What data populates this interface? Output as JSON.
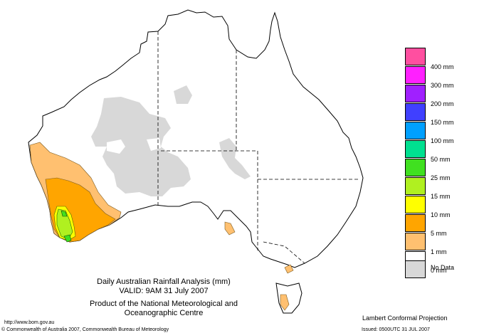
{
  "map_title": "Daily Australian Rainfall Analysis (mm)",
  "valid": "VALID: 9AM 31 July 2007",
  "product": "Product of the National Meteorological and Oceanographic Centre",
  "projection": "Lambert Conformal Projection",
  "url": "http://www.bom.gov.au",
  "copyright": "© Commonwealth of Australia 2007, Commonwealth Bureau of Meteorology",
  "issued": "Issued: 0500UTC 31 JUL 2007",
  "legend": [
    {
      "label": "400 mm",
      "color": "#ff4fa0"
    },
    {
      "label": "300 mm",
      "color": "#ff20ff"
    },
    {
      "label": "200 mm",
      "color": "#a020ff"
    },
    {
      "label": "150 mm",
      "color": "#4040ff"
    },
    {
      "label": "100 mm",
      "color": "#00a0ff"
    },
    {
      "label": "50 mm",
      "color": "#00e090"
    },
    {
      "label": "25 mm",
      "color": "#40e020"
    },
    {
      "label": "15 mm",
      "color": "#b0f020"
    },
    {
      "label": "10 mm",
      "color": "#ffff00"
    },
    {
      "label": "5 mm",
      "color": "#ffa500"
    },
    {
      "label": "1 mm",
      "color": "#ffc070"
    },
    {
      "label": "0 mm",
      "color": "#ffffff"
    },
    {
      "label": "No Data",
      "color": "#d8d8d8"
    }
  ]
}
